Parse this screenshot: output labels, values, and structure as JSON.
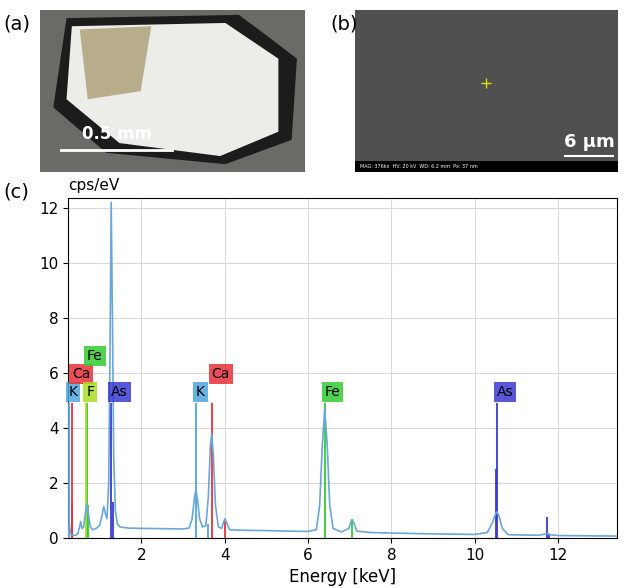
{
  "panel_labels": [
    "(a)",
    "(b)",
    "(c)"
  ],
  "photo": {
    "scale_bar": "0.5 mm"
  },
  "sem_image": {
    "scale_bar": "6 µm",
    "info": "MAG: 376kx  HV: 20 kV  WD: 6.2 mm  Px: 37 nm"
  },
  "chart_data": {
    "type": "line",
    "x_label": "Energy [keV]",
    "y_label": "cps/eV",
    "xlim": [
      0.25,
      13.4
    ],
    "xticks": [
      2,
      4,
      6,
      8,
      10,
      12
    ],
    "ylim": [
      0,
      12.35
    ],
    "yticks": [
      0,
      2,
      4,
      6,
      8,
      10,
      12
    ],
    "grid": true,
    "series": [
      {
        "name": "K",
        "type": "stem",
        "color": "#4ea6dc",
        "x": [
          0.26,
          3.31,
          3.59
        ],
        "values": [
          4.9,
          4.9,
          0.5
        ]
      },
      {
        "name": "Ca",
        "type": "stem",
        "color": "#e8303a",
        "x": [
          0.34,
          0.35,
          3.69,
          4.01
        ],
        "values": [
          4.9,
          1.3,
          4.9,
          0.7
        ]
      },
      {
        "name": "Fe",
        "type": "stem",
        "color": "#33cc33",
        "x": [
          0.7,
          0.72,
          6.4,
          7.06
        ],
        "values": [
          4.9,
          1.2,
          4.9,
          0.7
        ]
      },
      {
        "name": "F",
        "type": "stem",
        "color": "#aadd22",
        "x": [
          0.68
        ],
        "values": [
          4.9
        ]
      },
      {
        "name": "As",
        "type": "stem",
        "color": "#3a3ad0",
        "x": [
          1.28,
          1.32,
          10.51,
          10.53,
          11.73,
          11.79
        ],
        "values": [
          4.9,
          1.3,
          2.5,
          4.9,
          0.75,
          0.15
        ]
      },
      {
        "type": "line",
        "color": "#6aa7d8",
        "x": [
          0.25,
          0.28,
          0.31,
          0.36,
          0.42,
          0.48,
          0.52,
          0.55,
          0.58,
          0.62,
          0.66,
          0.7,
          0.74,
          0.78,
          0.84,
          0.92,
          1.0,
          1.06,
          1.1,
          1.14,
          1.18,
          1.22,
          1.25,
          1.28,
          1.31,
          1.34,
          1.38,
          1.43,
          1.5,
          1.7,
          2.0,
          2.5,
          3.0,
          3.15,
          3.22,
          3.28,
          3.31,
          3.35,
          3.4,
          3.47,
          3.55,
          3.61,
          3.66,
          3.69,
          3.73,
          3.78,
          3.85,
          3.93,
          3.98,
          4.01,
          4.05,
          4.12,
          4.5,
          5.0,
          5.5,
          6.0,
          6.2,
          6.28,
          6.34,
          6.4,
          6.46,
          6.52,
          6.6,
          6.8,
          6.98,
          7.03,
          7.06,
          7.1,
          7.17,
          7.5,
          8.0,
          9.0,
          10.0,
          10.3,
          10.42,
          10.5,
          10.53,
          10.58,
          10.66,
          10.8,
          11.5,
          11.65,
          11.73,
          11.8,
          12.0,
          13.4
        ],
        "values": [
          0.05,
          0.45,
          0.15,
          0.1,
          0.1,
          0.15,
          0.4,
          0.6,
          0.35,
          0.4,
          0.9,
          1.25,
          0.8,
          0.4,
          0.3,
          0.35,
          0.45,
          0.8,
          1.15,
          0.9,
          0.7,
          2.0,
          6.5,
          12.2,
          8.0,
          3.0,
          1.0,
          0.5,
          0.4,
          0.36,
          0.35,
          0.34,
          0.33,
          0.36,
          0.7,
          1.5,
          1.75,
          1.4,
          0.7,
          0.4,
          0.45,
          1.5,
          3.4,
          3.8,
          3.0,
          1.2,
          0.4,
          0.35,
          0.6,
          0.7,
          0.55,
          0.3,
          0.28,
          0.27,
          0.25,
          0.24,
          0.3,
          1.2,
          3.3,
          4.7,
          3.4,
          1.2,
          0.35,
          0.22,
          0.35,
          0.6,
          0.65,
          0.55,
          0.25,
          0.2,
          0.18,
          0.15,
          0.13,
          0.2,
          0.55,
          0.9,
          0.95,
          0.8,
          0.35,
          0.12,
          0.1,
          0.13,
          0.17,
          0.12,
          0.09,
          0.07
        ]
      }
    ]
  }
}
